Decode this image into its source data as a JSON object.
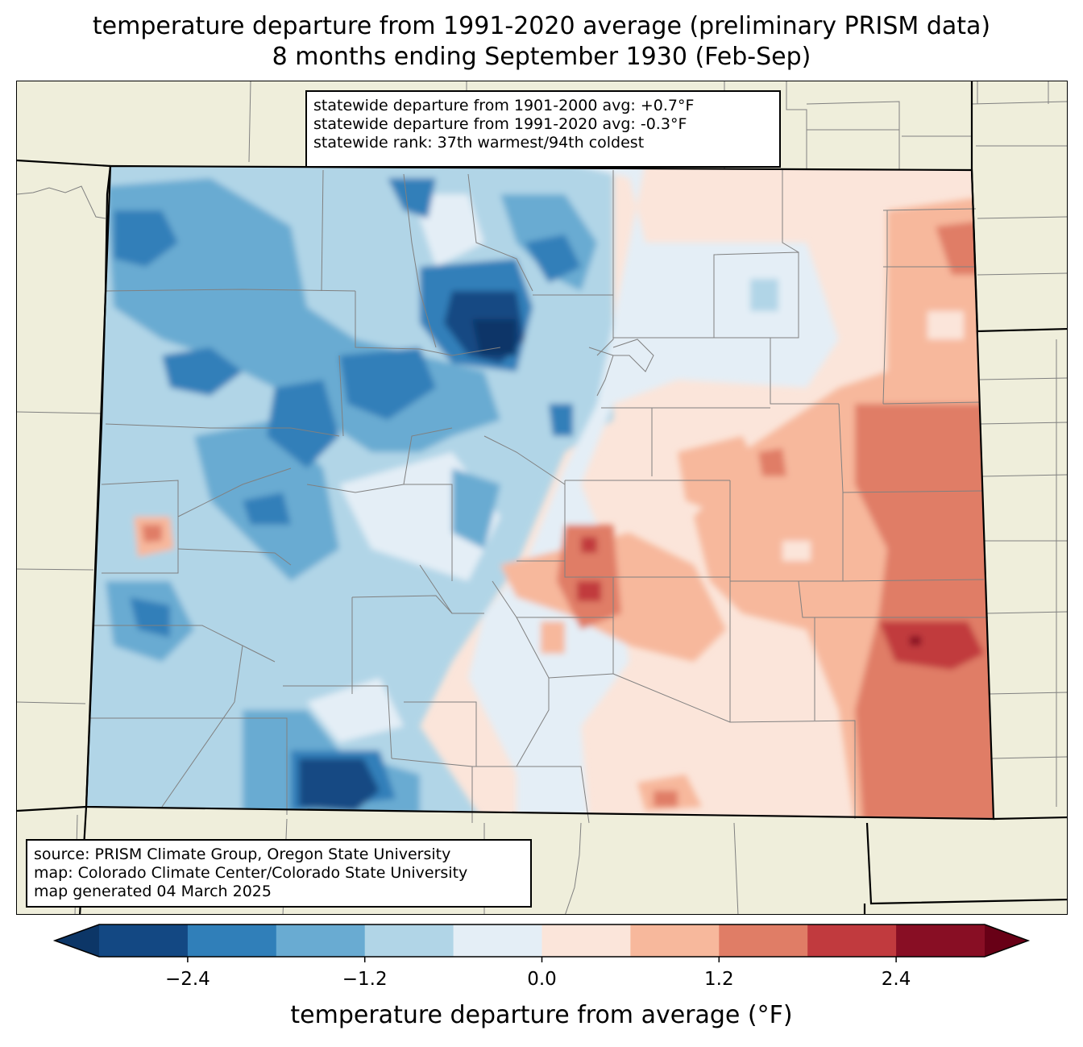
{
  "title": {
    "line1": "temperature departure from 1991-2020 average (preliminary PRISM data)",
    "line2": "8 months ending September 1930 (Feb-Sep)"
  },
  "stats": {
    "line1": "statewide departure from 1901-2000 avg: +0.7°F",
    "line2": "statewide departure from 1991-2020 avg: -0.3°F",
    "line3": "statewide rank: 37th warmest/94th coldest"
  },
  "source": {
    "line1": "source: PRISM Climate Group, Oregon State University",
    "line2": "map: Colorado Climate Center/Colorado State University",
    "line3": "map generated 04 March 2025"
  },
  "colorbar": {
    "label": "temperature departure from average (°F)",
    "ticks": [
      "−2.4",
      "−1.2",
      "0.0",
      "1.2",
      "2.4"
    ],
    "bins": [
      -3.0,
      -2.4,
      -1.8,
      -1.2,
      -0.6,
      0.0,
      0.6,
      1.2,
      1.8,
      2.4,
      3.0
    ],
    "colors": {
      "under": "#0c3667",
      "bins": [
        "#134883",
        "#307fb9",
        "#69abd2",
        "#b1d5e7",
        "#e4eef6",
        "#fbe5da",
        "#f7b89c",
        "#e07d66",
        "#c13a3e",
        "#880e24"
      ],
      "over": "#680016"
    }
  },
  "colors": {
    "land": "#efeedb",
    "county_lines": "#808080",
    "state_lines": "#000000"
  }
}
